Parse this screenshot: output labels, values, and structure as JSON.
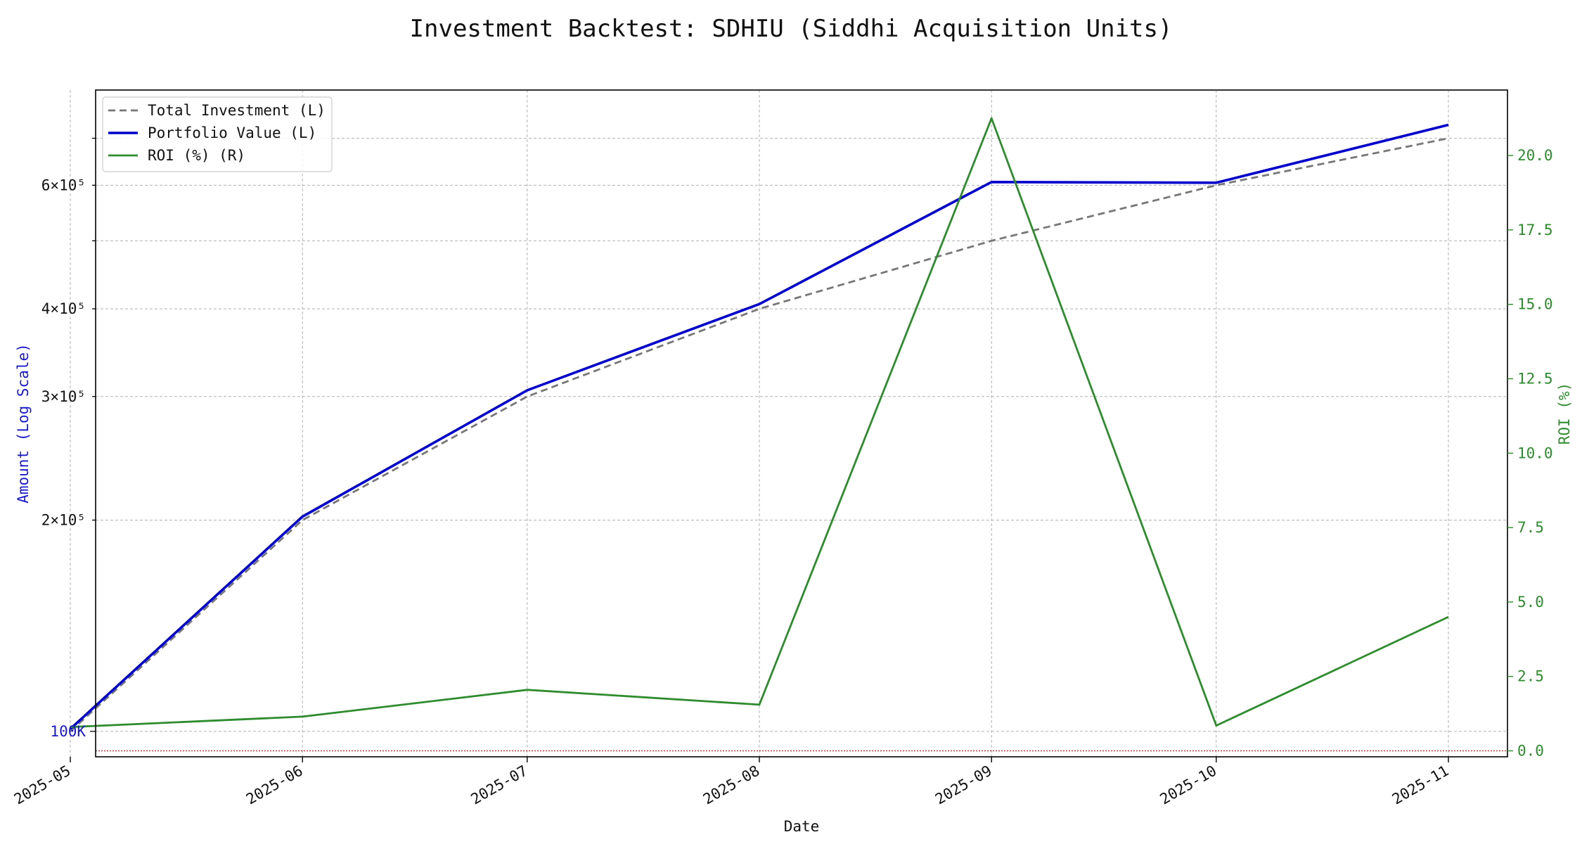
{
  "chart_data": {
    "type": "line",
    "title": "Investment Backtest: SDHIU (Siddhi Acquisition Units)",
    "xlabel": "Date",
    "ylabel_left": "Amount (Log Scale)",
    "ylabel_right": "ROI (%)",
    "x_ticks": [
      "2025-05",
      "2025-06",
      "2025-07",
      "2025-08",
      "2025-09",
      "2025-10",
      "2025-11"
    ],
    "x_dates": [
      "2025-04-30",
      "2025-05-31",
      "2025-06-30",
      "2025-07-31",
      "2025-08-31",
      "2025-09-30",
      "2025-10-31"
    ],
    "left_axis": {
      "scale": "log",
      "ylim": [
        92000,
        820000
      ],
      "major_ticks": [
        {
          "value": 100000,
          "label": "100K"
        }
      ],
      "minor_ticks": [
        {
          "value": 200000,
          "label": "2×10⁵"
        },
        {
          "value": 300000,
          "label": "3×10⁵"
        },
        {
          "value": 400000,
          "label": "4×10⁵"
        },
        {
          "value": 500000,
          "label": ""
        },
        {
          "value": 600000,
          "label": "6×10⁵"
        },
        {
          "value": 700000,
          "label": ""
        }
      ]
    },
    "right_axis": {
      "scale": "linear",
      "ylim": [
        -0.2,
        22.2
      ],
      "ticks": [
        "0.0",
        "2.5",
        "5.0",
        "7.5",
        "10.0",
        "12.5",
        "15.0",
        "17.5",
        "20.0"
      ],
      "reference_line": 0
    },
    "series": [
      {
        "name": "Total Investment (L)",
        "axis": "left",
        "style": "dashed",
        "color": "#777777",
        "values": [
          100000,
          200000,
          300000,
          400000,
          500000,
          600000,
          700000
        ]
      },
      {
        "name": "Portfolio Value (L)",
        "axis": "left",
        "style": "solid",
        "color": "#0000cc",
        "values": [
          100800,
          202300,
          306200,
          406300,
          606300,
          605000,
          731500
        ]
      },
      {
        "name": "ROI (%) (R)",
        "axis": "right",
        "style": "solid",
        "color": "#2e8b2e",
        "values": [
          0.8,
          1.15,
          2.05,
          1.55,
          21.25,
          0.85,
          4.5
        ]
      }
    ],
    "legend_position": "top-left",
    "grid": true,
    "colors": {
      "left_axis_label": "#1a1acc",
      "right_axis": "#2e8b2e",
      "reference_line": "#cc3333"
    }
  }
}
